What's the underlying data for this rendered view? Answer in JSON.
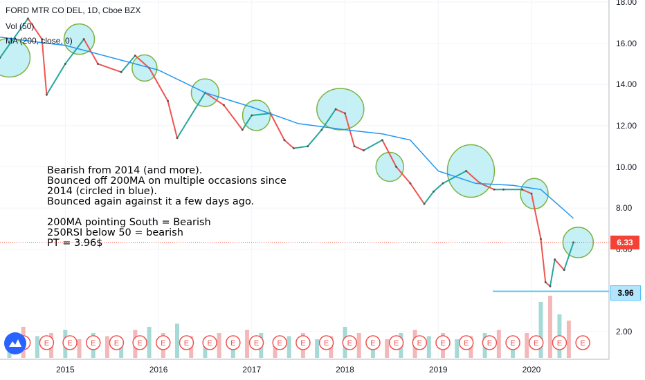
{
  "chart_data": {
    "type": "line",
    "title": "FORD MTR CO DEL, 1D, Cboe BZX",
    "legend": [
      "Vol (50)",
      "MA (200, close, 0)"
    ],
    "x_ticks": [
      "2015",
      "2016",
      "2017",
      "2018",
      "2019",
      "2020"
    ],
    "y_ticks": [
      "18.00",
      "16.00",
      "14.00",
      "12.00",
      "10.00",
      "8.00",
      "6.00",
      "2.00"
    ],
    "ylim": [
      1.0,
      18.0
    ],
    "price_series": {
      "name": "Price",
      "x": [
        2014.3,
        2014.6,
        2014.75,
        2014.8,
        2015.0,
        2015.2,
        2015.35,
        2015.6,
        2015.75,
        2015.9,
        2016.1,
        2016.2,
        2016.5,
        2016.7,
        2016.9,
        2017.0,
        2017.2,
        2017.35,
        2017.45,
        2017.6,
        2017.75,
        2017.9,
        2018.0,
        2018.1,
        2018.2,
        2018.4,
        2018.55,
        2018.7,
        2018.85,
        2018.95,
        2019.05,
        2019.3,
        2019.45,
        2019.6,
        2019.7,
        2019.9,
        2020.0,
        2020.1,
        2020.15,
        2020.2,
        2020.25,
        2020.35,
        2020.45
      ],
      "y": [
        15.3,
        17.2,
        16.2,
        13.5,
        15.0,
        16.2,
        15.0,
        14.6,
        15.4,
        14.8,
        13.2,
        11.4,
        13.6,
        13.0,
        11.8,
        12.5,
        12.6,
        11.3,
        10.9,
        11.0,
        11.8,
        12.8,
        12.6,
        11.0,
        10.8,
        11.3,
        10.0,
        9.2,
        8.2,
        8.8,
        9.2,
        9.8,
        9.2,
        8.9,
        8.9,
        8.9,
        8.7,
        6.5,
        4.4,
        4.2,
        5.5,
        5.0,
        6.33
      ]
    },
    "ma200": {
      "name": "MA (200, close, 0)",
      "x": [
        2014.3,
        2014.8,
        2015.0,
        2015.5,
        2016.0,
        2016.5,
        2017.0,
        2017.5,
        2018.0,
        2018.4,
        2018.7,
        2019.0,
        2019.4,
        2019.8,
        2020.1,
        2020.3,
        2020.45
      ],
      "y": [
        16.3,
        16.0,
        15.9,
        15.3,
        14.7,
        13.6,
        12.9,
        12.1,
        11.8,
        11.6,
        11.3,
        9.8,
        9.2,
        9.1,
        8.9,
        8.1,
        7.5
      ]
    },
    "volume": {
      "x": [
        2014.4,
        2014.55,
        2014.7,
        2014.85,
        2015.0,
        2015.15,
        2015.3,
        2015.45,
        2015.6,
        2015.75,
        2015.9,
        2016.05,
        2016.2,
        2016.35,
        2016.5,
        2016.65,
        2016.8,
        2016.95,
        2017.1,
        2017.25,
        2017.4,
        2017.55,
        2017.7,
        2017.85,
        2018.0,
        2018.15,
        2018.3,
        2018.45,
        2018.6,
        2018.75,
        2018.9,
        2019.05,
        2019.2,
        2019.35,
        2019.5,
        2019.65,
        2019.8,
        2019.95,
        2020.1,
        2020.2,
        2020.3,
        2020.4
      ],
      "values": [
        30,
        50,
        35,
        40,
        45,
        30,
        40,
        35,
        30,
        45,
        50,
        40,
        55,
        35,
        30,
        40,
        35,
        45,
        40,
        30,
        35,
        40,
        30,
        35,
        50,
        40,
        35,
        30,
        40,
        45,
        35,
        40,
        30,
        35,
        40,
        45,
        35,
        40,
        90,
        100,
        70,
        60
      ]
    },
    "highlight_circles_x": [
      2014.4,
      2015.15,
      2015.85,
      2016.5,
      2017.05,
      2017.95,
      2018.48,
      2019.35,
      2020.03,
      2020.5
    ],
    "horizontal_line": {
      "value": 3.96,
      "label": "3.96"
    },
    "current_price": {
      "value": 6.33,
      "label": "6.33"
    },
    "earnings_markers_x": [
      2014.55,
      2014.8,
      2015.05,
      2015.3,
      2015.55,
      2015.8,
      2016.05,
      2016.3,
      2016.55,
      2016.8,
      2017.05,
      2017.3,
      2017.55,
      2017.8,
      2018.05,
      2018.3,
      2018.55,
      2018.8,
      2019.05,
      2019.3,
      2019.55,
      2019.8,
      2020.05,
      2020.3,
      2020.55
    ],
    "earnings_marker_label": "E",
    "grid": true
  },
  "legend_lines": {
    "title": "FORD MTR CO DEL, 1D, Cboe BZX",
    "vol": "Vol (50)",
    "ma": "MA (200, close, 0)"
  },
  "annotation": "Bearish from 2014 (and more).\nBounced off 200MA on multiple occasions since\n2014 (circled in blue).\nBounced again against it a few days ago.\n\n200MA pointing South = Bearish\n250RSI below 50 = bearish\nPT = 3.96$",
  "colors": {
    "up": "#26a69a",
    "down": "#ef5350",
    "ma": "#2196f3",
    "circle_fill": "#b2ebf2",
    "circle_stroke": "#7cb342",
    "hline": "#4fc3f7",
    "price_tag": "#f44336"
  }
}
